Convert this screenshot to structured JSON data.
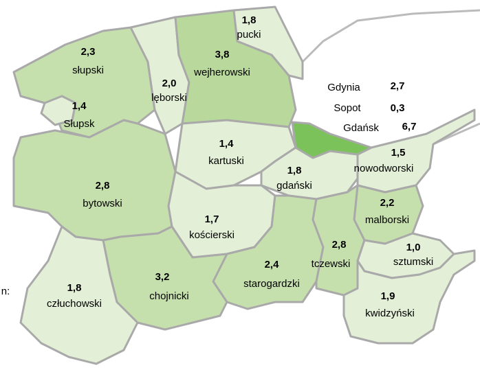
{
  "regions": [
    {
      "name": "słupski",
      "value": "2,3",
      "color": "#c6e0ad"
    },
    {
      "name": "Słupsk",
      "value": "1,4",
      "color": "#e3efd6"
    },
    {
      "name": "lęborski",
      "value": "2,0",
      "color": "#e3efd6"
    },
    {
      "name": "wejherowski",
      "value": "3,8",
      "color": "#b9d99c"
    },
    {
      "name": "pucki",
      "value": "1,8",
      "color": "#e3efd6"
    },
    {
      "name": "bytowski",
      "value": "2,8",
      "color": "#c6e0ad"
    },
    {
      "name": "kartuski",
      "value": "1,4",
      "color": "#e3efd6"
    },
    {
      "name": "gdański",
      "value": "1,8",
      "color": "#e3efd6"
    },
    {
      "name": "nowodworski",
      "value": "1,5",
      "color": "#e3efd6"
    },
    {
      "name": "malborski",
      "value": "2,2",
      "color": "#c6e0ad"
    },
    {
      "name": "kościerski",
      "value": "1,7",
      "color": "#e3efd6"
    },
    {
      "name": "starogardzki",
      "value": "2,4",
      "color": "#c6e0ad"
    },
    {
      "name": "tczewski",
      "value": "2,8",
      "color": "#c6e0ad"
    },
    {
      "name": "chojnicki",
      "value": "3,2",
      "color": "#c6e0ad"
    },
    {
      "name": "człuchowski",
      "value": "1,8",
      "color": "#e3efd6"
    },
    {
      "name": "sztumski",
      "value": "1,0",
      "color": "#e3efd6"
    },
    {
      "name": "kwidzyński",
      "value": "1,9",
      "color": "#e3efd6"
    }
  ],
  "cities": [
    {
      "name": "Gdynia",
      "value": "2,7"
    },
    {
      "name": "Sopot",
      "value": "0,3"
    },
    {
      "name": "Gdańsk",
      "value": "6,7",
      "color": "#7cc25a"
    }
  ],
  "legend_fragment": "n:"
}
